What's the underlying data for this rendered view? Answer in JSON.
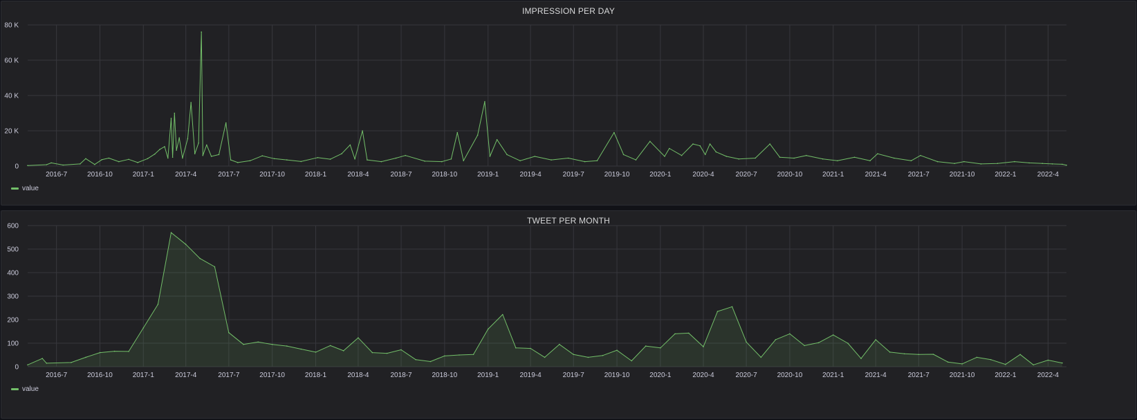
{
  "colors": {
    "series": "#73bf69",
    "grid": "#37373d",
    "background": "#212124",
    "text": "#ccccdc"
  },
  "chart_data": [
    {
      "type": "line",
      "title": "IMPRESSION PER DAY",
      "xlabel": "",
      "ylabel": "",
      "x_range": [
        "2016-05-01",
        "2022-05-10"
      ],
      "ylim": [
        0,
        80000
      ],
      "y_ticks": [
        0,
        20000,
        40000,
        60000,
        80000
      ],
      "y_tick_labels": [
        "0",
        "20 K",
        "40 K",
        "60 K",
        "80 K"
      ],
      "x_tick_labels": [
        "2016-7",
        "2016-10",
        "2017-1",
        "2017-4",
        "2017-7",
        "2017-10",
        "2018-1",
        "2018-4",
        "2018-7",
        "2018-10",
        "2019-1",
        "2019-4",
        "2019-7",
        "2019-10",
        "2020-1",
        "2020-4",
        "2020-7",
        "2020-10",
        "2021-1",
        "2021-4",
        "2021-7",
        "2021-10",
        "2022-1",
        "2022-4"
      ],
      "grid": true,
      "legend_position": "bottom-left",
      "series": [
        {
          "name": "value",
          "points": [
            [
              "2016-05-01",
              300
            ],
            [
              "2016-06-10",
              800
            ],
            [
              "2016-06-20",
              1800
            ],
            [
              "2016-07-15",
              600
            ],
            [
              "2016-08-20",
              1200
            ],
            [
              "2016-09-01",
              4200
            ],
            [
              "2016-09-20",
              900
            ],
            [
              "2016-10-05",
              3600
            ],
            [
              "2016-10-20",
              4500
            ],
            [
              "2016-11-10",
              2500
            ],
            [
              "2016-12-01",
              3800
            ],
            [
              "2016-12-20",
              2000
            ],
            [
              "2017-01-10",
              4200
            ],
            [
              "2017-01-25",
              6800
            ],
            [
              "2017-02-05",
              9500
            ],
            [
              "2017-02-15",
              11000
            ],
            [
              "2017-02-22",
              4500
            ],
            [
              "2017-03-01",
              27000
            ],
            [
              "2017-03-04",
              5000
            ],
            [
              "2017-03-08",
              30000
            ],
            [
              "2017-03-12",
              9000
            ],
            [
              "2017-03-18",
              16000
            ],
            [
              "2017-03-25",
              4500
            ],
            [
              "2017-04-05",
              15500
            ],
            [
              "2017-04-12",
              36000
            ],
            [
              "2017-04-20",
              7000
            ],
            [
              "2017-04-28",
              13000
            ],
            [
              "2017-05-04",
              76000
            ],
            [
              "2017-05-07",
              6000
            ],
            [
              "2017-05-15",
              12000
            ],
            [
              "2017-05-25",
              5500
            ],
            [
              "2017-06-10",
              6500
            ],
            [
              "2017-06-25",
              24500
            ],
            [
              "2017-07-05",
              3500
            ],
            [
              "2017-07-20",
              2000
            ],
            [
              "2017-08-15",
              3000
            ],
            [
              "2017-09-10",
              5800
            ],
            [
              "2017-10-05",
              4200
            ],
            [
              "2017-11-01",
              3500
            ],
            [
              "2017-12-01",
              2600
            ],
            [
              "2018-01-05",
              4800
            ],
            [
              "2018-02-01",
              3900
            ],
            [
              "2018-02-25",
              7000
            ],
            [
              "2018-03-15",
              12000
            ],
            [
              "2018-03-25",
              4000
            ],
            [
              "2018-04-10",
              20000
            ],
            [
              "2018-04-20",
              3500
            ],
            [
              "2018-05-20",
              2500
            ],
            [
              "2018-06-20",
              4500
            ],
            [
              "2018-07-10",
              6000
            ],
            [
              "2018-08-20",
              2800
            ],
            [
              "2018-09-25",
              2500
            ],
            [
              "2018-10-15",
              4000
            ],
            [
              "2018-10-28",
              19000
            ],
            [
              "2018-11-10",
              3000
            ],
            [
              "2018-12-10",
              17500
            ],
            [
              "2018-12-25",
              36500
            ],
            [
              "2019-01-05",
              5500
            ],
            [
              "2019-01-20",
              15000
            ],
            [
              "2019-02-10",
              6500
            ],
            [
              "2019-03-10",
              3000
            ],
            [
              "2019-04-10",
              5500
            ],
            [
              "2019-05-15",
              3500
            ],
            [
              "2019-06-20",
              4500
            ],
            [
              "2019-07-25",
              2500
            ],
            [
              "2019-08-20",
              3000
            ],
            [
              "2019-09-25",
              19000
            ],
            [
              "2019-10-15",
              6500
            ],
            [
              "2019-11-10",
              3500
            ],
            [
              "2019-12-10",
              14000
            ],
            [
              "2020-01-10",
              5500
            ],
            [
              "2020-01-20",
              10000
            ],
            [
              "2020-02-15",
              6000
            ],
            [
              "2020-03-10",
              12500
            ],
            [
              "2020-03-25",
              11500
            ],
            [
              "2020-04-05",
              6500
            ],
            [
              "2020-04-15",
              12500
            ],
            [
              "2020-04-28",
              8000
            ],
            [
              "2020-05-20",
              5500
            ],
            [
              "2020-06-15",
              4000
            ],
            [
              "2020-07-20",
              4500
            ],
            [
              "2020-08-20",
              12500
            ],
            [
              "2020-09-10",
              5000
            ],
            [
              "2020-10-10",
              4500
            ],
            [
              "2020-11-05",
              6000
            ],
            [
              "2020-12-10",
              4000
            ],
            [
              "2021-01-10",
              3000
            ],
            [
              "2021-02-15",
              5000
            ],
            [
              "2021-03-20",
              3000
            ],
            [
              "2021-04-05",
              7000
            ],
            [
              "2021-05-10",
              4500
            ],
            [
              "2021-06-15",
              3000
            ],
            [
              "2021-07-05",
              6000
            ],
            [
              "2021-08-10",
              2500
            ],
            [
              "2021-09-15",
              1500
            ],
            [
              "2021-10-05",
              2500
            ],
            [
              "2021-11-10",
              1200
            ],
            [
              "2021-12-15",
              1500
            ],
            [
              "2022-01-20",
              2500
            ],
            [
              "2022-02-20",
              1800
            ],
            [
              "2022-03-20",
              1500
            ],
            [
              "2022-04-10",
              1200
            ],
            [
              "2022-05-01",
              1000
            ],
            [
              "2022-05-10",
              500
            ]
          ]
        }
      ]
    },
    {
      "type": "area",
      "title": "TWEET PER MONTH",
      "xlabel": "",
      "ylabel": "",
      "x_range": [
        "2016-05-01",
        "2022-05-10"
      ],
      "ylim": [
        0,
        600
      ],
      "y_ticks": [
        0,
        100,
        200,
        300,
        400,
        500,
        600
      ],
      "y_tick_labels": [
        "0",
        "100",
        "200",
        "300",
        "400",
        "500",
        "600"
      ],
      "x_tick_labels": [
        "2016-7",
        "2016-10",
        "2017-1",
        "2017-4",
        "2017-7",
        "2017-10",
        "2018-1",
        "2018-4",
        "2018-7",
        "2018-10",
        "2019-1",
        "2019-4",
        "2019-7",
        "2019-10",
        "2020-1",
        "2020-4",
        "2020-7",
        "2020-10",
        "2021-1",
        "2021-4",
        "2021-7",
        "2021-10",
        "2022-1",
        "2022-4"
      ],
      "grid": true,
      "legend_position": "bottom-left",
      "series": [
        {
          "name": "value",
          "points": [
            [
              "2016-05-01",
              8
            ],
            [
              "2016-06-01",
              35
            ],
            [
              "2016-06-10",
              15
            ],
            [
              "2016-08-01",
              18
            ],
            [
              "2016-09-01",
              40
            ],
            [
              "2016-10-01",
              60
            ],
            [
              "2016-11-01",
              66
            ],
            [
              "2016-12-01",
              65
            ],
            [
              "2017-01-01",
              165
            ],
            [
              "2017-02-01",
              265
            ],
            [
              "2017-03-01",
              570
            ],
            [
              "2017-04-01",
              520
            ],
            [
              "2017-05-01",
              460
            ],
            [
              "2017-06-01",
              425
            ],
            [
              "2017-07-01",
              145
            ],
            [
              "2017-08-01",
              95
            ],
            [
              "2017-09-01",
              105
            ],
            [
              "2017-10-01",
              95
            ],
            [
              "2017-11-01",
              88
            ],
            [
              "2017-12-01",
              75
            ],
            [
              "2018-01-01",
              62
            ],
            [
              "2018-02-01",
              90
            ],
            [
              "2018-03-01",
              68
            ],
            [
              "2018-04-01",
              123
            ],
            [
              "2018-05-01",
              60
            ],
            [
              "2018-06-01",
              57
            ],
            [
              "2018-07-01",
              72
            ],
            [
              "2018-08-01",
              30
            ],
            [
              "2018-09-01",
              22
            ],
            [
              "2018-10-01",
              46
            ],
            [
              "2018-11-01",
              50
            ],
            [
              "2018-12-01",
              52
            ],
            [
              "2019-01-01",
              160
            ],
            [
              "2019-02-01",
              222
            ],
            [
              "2019-03-01",
              80
            ],
            [
              "2019-04-01",
              78
            ],
            [
              "2019-05-01",
              40
            ],
            [
              "2019-06-01",
              95
            ],
            [
              "2019-07-01",
              52
            ],
            [
              "2019-08-01",
              40
            ],
            [
              "2019-09-01",
              48
            ],
            [
              "2019-10-01",
              70
            ],
            [
              "2019-11-01",
              25
            ],
            [
              "2019-12-01",
              88
            ],
            [
              "2020-01-01",
              80
            ],
            [
              "2020-02-01",
              140
            ],
            [
              "2020-03-01",
              143
            ],
            [
              "2020-04-01",
              85
            ],
            [
              "2020-05-01",
              235
            ],
            [
              "2020-06-01",
              255
            ],
            [
              "2020-07-01",
              105
            ],
            [
              "2020-08-01",
              40
            ],
            [
              "2020-09-01",
              115
            ],
            [
              "2020-10-01",
              140
            ],
            [
              "2020-11-01",
              90
            ],
            [
              "2020-12-01",
              102
            ],
            [
              "2021-01-01",
              135
            ],
            [
              "2021-02-01",
              100
            ],
            [
              "2021-03-01",
              35
            ],
            [
              "2021-04-01",
              115
            ],
            [
              "2021-05-01",
              62
            ],
            [
              "2021-06-01",
              55
            ],
            [
              "2021-07-01",
              52
            ],
            [
              "2021-08-01",
              53
            ],
            [
              "2021-09-01",
              20
            ],
            [
              "2021-10-01",
              12
            ],
            [
              "2021-11-01",
              40
            ],
            [
              "2021-12-01",
              30
            ],
            [
              "2022-01-01",
              10
            ],
            [
              "2022-02-01",
              52
            ],
            [
              "2022-03-01",
              8
            ],
            [
              "2022-04-01",
              28
            ],
            [
              "2022-05-01",
              16
            ]
          ]
        }
      ]
    }
  ]
}
